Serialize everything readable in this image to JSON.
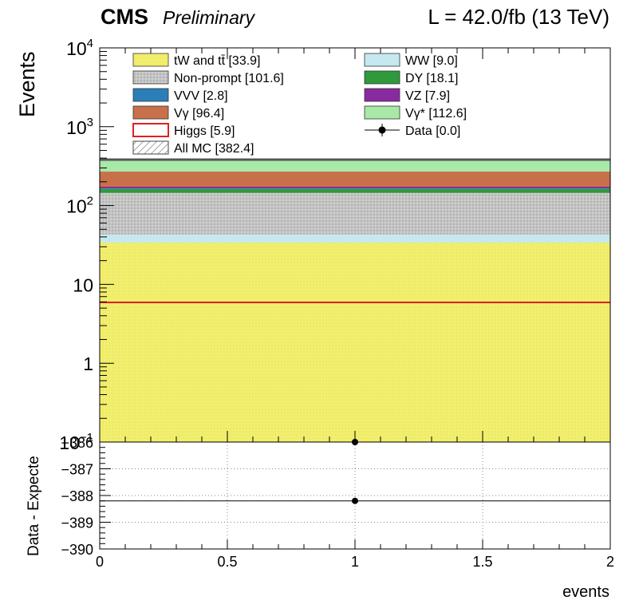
{
  "header": {
    "experiment": "CMS",
    "status": "Preliminary",
    "lumi": "L = 42.0/fb (13 TeV)"
  },
  "chart_data": [
    {
      "type": "bar",
      "subtype": "stacked-histogram",
      "ylabel": "Events",
      "yscale": "log",
      "ylim": [
        0.1,
        10000
      ],
      "xlim": [
        0,
        2
      ],
      "y_ticks": [
        {
          "v": 10000,
          "label": "10",
          "exp": "4"
        },
        {
          "v": 1000,
          "label": "10",
          "exp": "3"
        },
        {
          "v": 100,
          "label": "10",
          "exp": "2"
        },
        {
          "v": 10,
          "label": "10",
          "exp": ""
        },
        {
          "v": 1,
          "label": "1",
          "exp": ""
        },
        {
          "v": 0.1,
          "label": "10",
          "exp": "−1"
        }
      ],
      "series": [
        {
          "name": "tW and tt̄ [33.9]",
          "value": 33.9,
          "color": "#f2ee6e"
        },
        {
          "name": "WW [9.0]",
          "value": 9.0,
          "color": "#c6e8f0"
        },
        {
          "name": "Non-prompt [101.6]",
          "value": 101.6,
          "color": "#c0c0c0"
        },
        {
          "name": "DY [18.1]",
          "value": 18.1,
          "color": "#2e9a3c"
        },
        {
          "name": "VVV [2.8]",
          "value": 2.8,
          "color": "#2a7fb8"
        },
        {
          "name": "VZ [7.9]",
          "value": 7.9,
          "color": "#8a2aa0"
        },
        {
          "name": "Vγ [96.4]",
          "value": 96.4,
          "color": "#c8704a"
        },
        {
          "name": "Vγ* [112.6]",
          "value": 112.6,
          "color": "#a8e8a8"
        }
      ],
      "overlays": [
        {
          "name": "Higgs [5.9]",
          "value": 5.9,
          "color": "#e02020"
        },
        {
          "name": "All MC [382.4]",
          "value": 382.4
        }
      ],
      "data": {
        "name": "Data [0.0]",
        "x": 1,
        "value": 0.0
      }
    },
    {
      "type": "scatter",
      "ylabel": "Data - Expecte",
      "xlabel": "events",
      "xlim": [
        0,
        2
      ],
      "ylim": [
        -390,
        -386
      ],
      "y_ticks": [
        "−386",
        "−387",
        "−388",
        "−389",
        "−390"
      ],
      "x_ticks": [
        "0",
        "0.5",
        "1",
        "1.5",
        "2"
      ],
      "points": [
        {
          "x": 1,
          "y": -388.2
        }
      ],
      "reference_line": -388.2
    }
  ]
}
